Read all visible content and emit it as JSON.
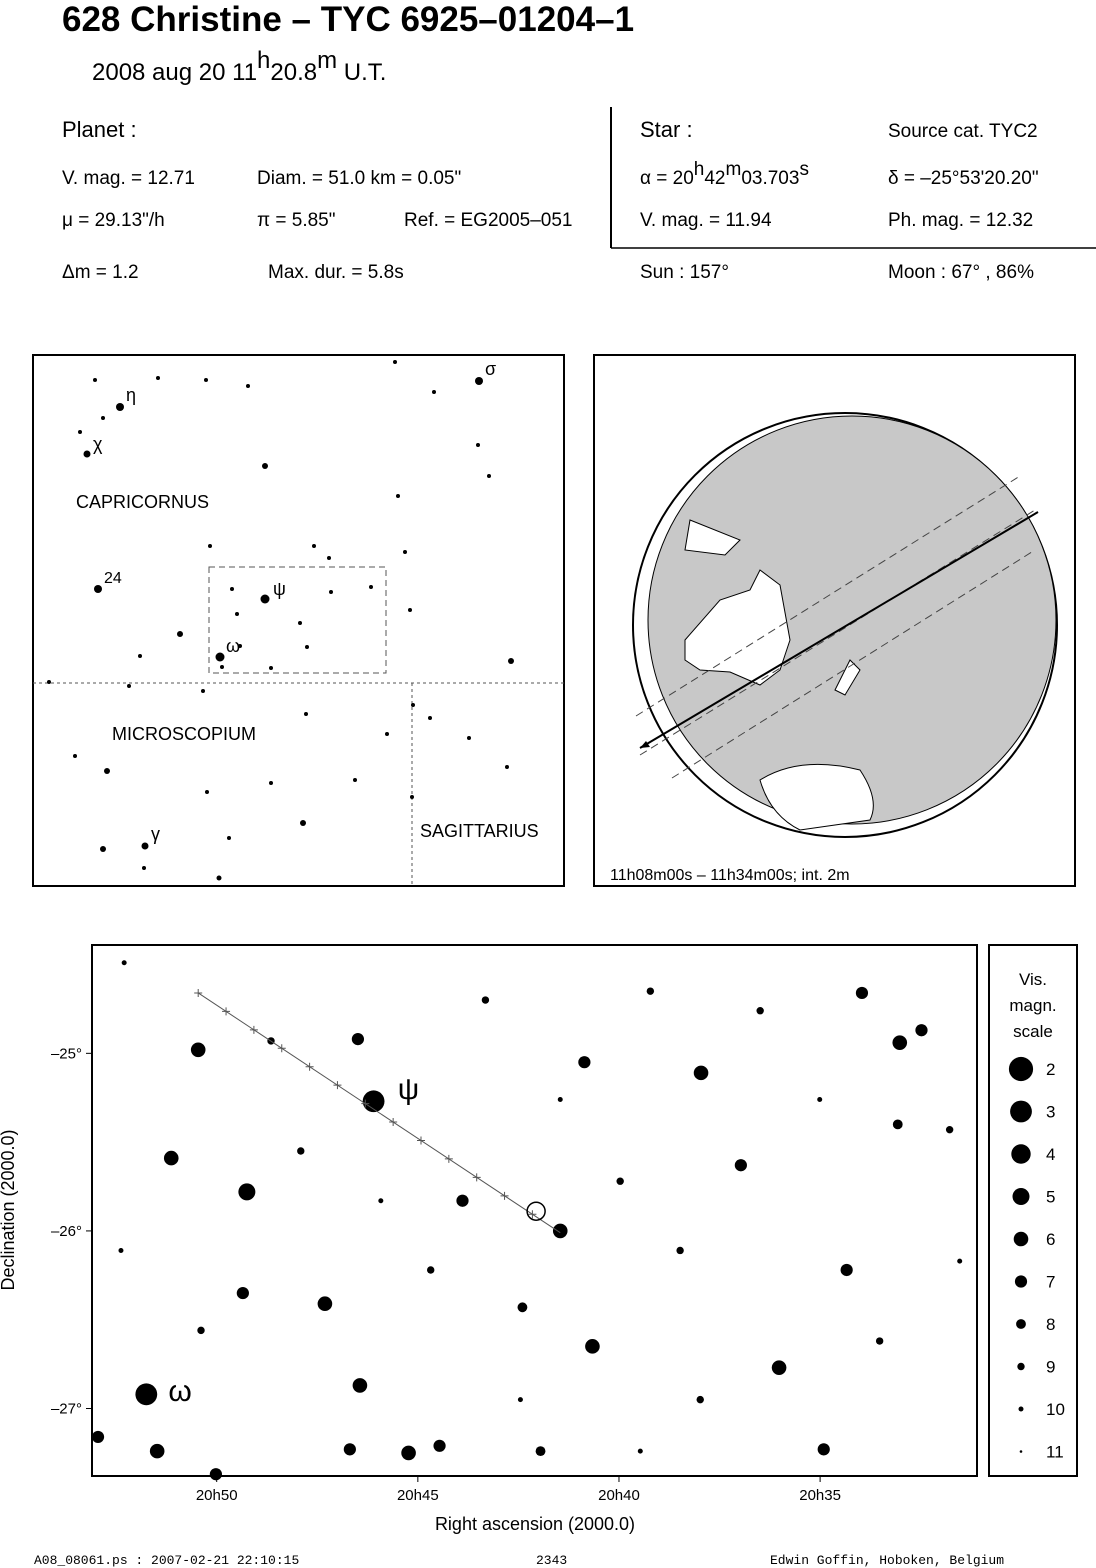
{
  "header": {
    "title": "628 Christine  –  TYC 6925–01204–1",
    "date": [
      "2008 aug 20  11",
      "h",
      "20.8",
      "m",
      " U.T."
    ]
  },
  "info": {
    "planet": {
      "label": "Planet :",
      "vmag": "V. mag. = 12.71",
      "diam": "Diam. = 51.0 km = 0.05\"",
      "mu": "μ =  29.13\"/h",
      "pi": "π =  5.85\"",
      "ref": "Ref. = EG2005–051"
    },
    "star": {
      "label": "Star :",
      "source": "Source cat.  TYC2",
      "alpha": [
        "α = 20",
        "h",
        "42",
        "m",
        "03.703",
        "s"
      ],
      "delta": "δ = –25°53'20.20\"",
      "vmag": "V. mag. = 11.94",
      "phmag": "Ph. mag. = 12.32"
    },
    "bottom": {
      "dm": "Δm = 1.2",
      "dur": "Max. dur. = 5.8s",
      "sun": "Sun : 157°",
      "moon": "Moon :  67° , 86%"
    }
  },
  "finder": {
    "constellations": [
      "CAPRICORNUS",
      "MICROSCOPIUM",
      "SAGITTARIUS"
    ],
    "stars": [
      "η",
      "χ",
      "24",
      "ψ",
      "ω",
      "γ",
      "σ"
    ]
  },
  "globe": {
    "caption": "11h08m00s – 11h34m00s; int.  2m"
  },
  "chart_data": {
    "type": "scatter",
    "xlabel": "Right ascension (2000.0)",
    "ylabel": "Declination (2000.0)",
    "xlim": [
      1253.1,
      1231.1
    ],
    "ylim": [
      -27.38,
      -24.39
    ],
    "xticks": [
      {
        "value": 1250,
        "label": "20h50"
      },
      {
        "value": 1245,
        "label": "20h45"
      },
      {
        "value": 1240,
        "label": "20h40"
      },
      {
        "value": 1235,
        "label": "20h35"
      }
    ],
    "yticks": [
      {
        "value": -25,
        "label": "–25°"
      },
      {
        "value": -26,
        "label": "–26°"
      },
      {
        "value": -27,
        "label": "–27°"
      }
    ],
    "stars": {
      "x": [
        1246.1,
        1251.75,
        1250.46,
        1251.13,
        1249.25,
        1247.31,
        1246.44,
        1245.23,
        1251.48,
        1250.02,
        1241.46,
        1240.66,
        1240.86,
        1237.96,
        1233.02,
        1232.48,
        1233.96,
        1236.02,
        1234.91,
        1252.95,
        1243.89,
        1236.97,
        1234.34,
        1242.4,
        1244.46,
        1246.69,
        1249.35,
        1246.49,
        1233.07,
        1241.95,
        1252.3,
        1248.65,
        1243.32,
        1239.22,
        1236.49,
        1231.78,
        1239.97,
        1238.48,
        1244.68,
        1247.91,
        1250.39,
        1237.98,
        1233.52,
        1242.45,
        1252.38,
        1231.53,
        1239.47,
        1245.92,
        1235.01,
        1241.46
      ],
      "y": [
        -25.27,
        -26.92,
        -24.98,
        -25.59,
        -25.78,
        -26.41,
        -26.87,
        -27.25,
        -27.24,
        -27.37,
        -26.0,
        -26.65,
        -25.05,
        -25.11,
        -24.94,
        -24.87,
        -24.66,
        -26.77,
        -27.23,
        -27.16,
        -25.83,
        -25.63,
        -26.22,
        -26.43,
        -27.21,
        -27.23,
        -26.35,
        -24.92,
        -25.4,
        -27.24,
        -24.49,
        -24.93,
        -24.7,
        -24.65,
        -24.76,
        -25.43,
        -25.72,
        -26.11,
        -26.22,
        -25.55,
        -26.56,
        -26.95,
        -26.62,
        -26.95,
        -26.11,
        -26.17,
        -27.24,
        -25.83,
        -25.26,
        -25.26
      ],
      "mag": [
        3,
        3,
        6,
        6,
        5,
        6,
        6,
        6,
        6,
        7,
        6,
        6,
        7,
        6,
        6,
        7,
        7,
        6,
        7,
        7,
        7,
        7,
        7,
        8,
        7,
        7,
        7,
        7,
        8,
        8,
        10,
        9,
        9,
        9,
        9,
        9,
        9,
        9,
        9,
        9,
        9,
        9,
        9,
        10,
        10,
        10,
        10,
        10,
        10,
        10
      ]
    },
    "target": {
      "x": 1242.06,
      "y": -25.889
    },
    "track": {
      "x": [
        1250.46,
        1241.46
      ],
      "y": [
        -24.66,
        -26.01
      ]
    },
    "labels": [
      {
        "text": "ψ",
        "x": 1245.5,
        "y": -25.2
      },
      {
        "text": "ω",
        "x": 1251.2,
        "y": -26.9
      }
    ],
    "legend": {
      "title": [
        "Vis.",
        "magn.",
        "scale"
      ],
      "mags": [
        2,
        3,
        4,
        5,
        6,
        7,
        8,
        9,
        10,
        11
      ]
    }
  },
  "footer": {
    "file": "A08_08061.ps : 2007-02-21 22:10:15",
    "num": "2343",
    "author": "Edwin Goffin, Hoboken, Belgium"
  }
}
